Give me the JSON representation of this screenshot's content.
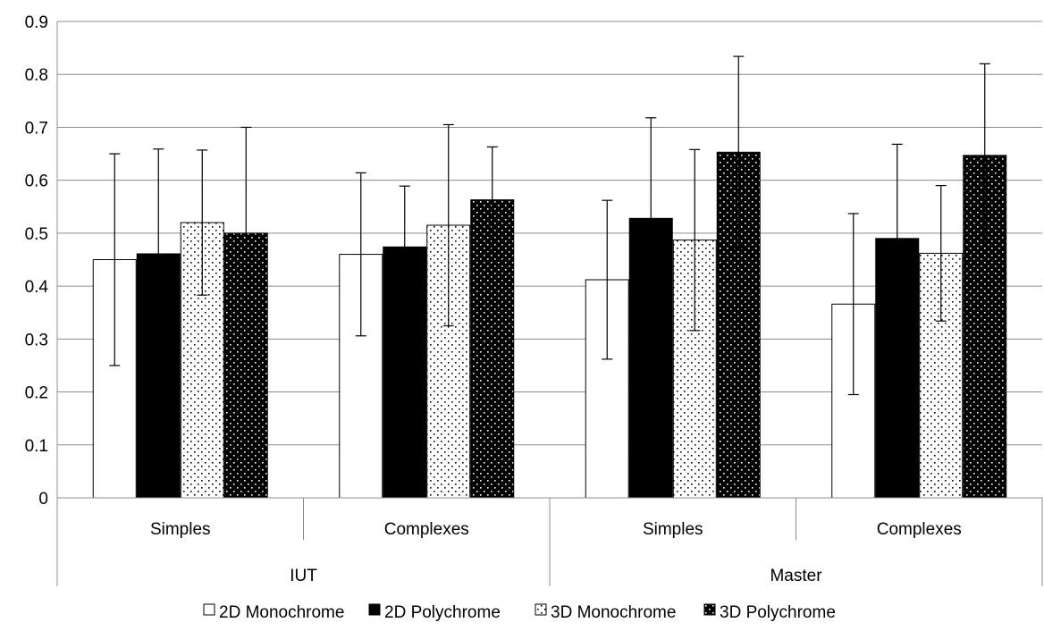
{
  "chart_data": {
    "type": "bar",
    "title": "",
    "xlabel": "",
    "ylabel": "",
    "ylim": [
      0,
      0.9
    ],
    "y_ticks": [
      "0",
      "0.1",
      "0.2",
      "0.3",
      "0.4",
      "0.5",
      "0.6",
      "0.7",
      "0.8",
      "0.9"
    ],
    "grid": true,
    "legend_position": "bottom",
    "groups": [
      {
        "label": "IUT",
        "categories": [
          "Simples",
          "Complexes"
        ]
      },
      {
        "label": "Master",
        "categories": [
          "Simples",
          "Complexes"
        ]
      }
    ],
    "series": [
      {
        "name": "2D Monochrome",
        "pattern": "white",
        "values": [
          0.45,
          0.46,
          0.412,
          0.366
        ],
        "errors": [
          0.2,
          0.154,
          0.15,
          0.171
        ]
      },
      {
        "name": "2D Polychrome",
        "pattern": "black",
        "values": [
          0.461,
          0.474,
          0.528,
          0.49
        ],
        "errors": [
          0.198,
          0.115,
          0.19,
          0.178
        ]
      },
      {
        "name": "3D Monochrome",
        "pattern": "dotted-white",
        "values": [
          0.52,
          0.515,
          0.487,
          0.462
        ],
        "errors": [
          0.137,
          0.19,
          0.171,
          0.128
        ]
      },
      {
        "name": "3D Polychrome",
        "pattern": "dotted-black",
        "values": [
          0.5,
          0.563,
          0.653,
          0.647
        ],
        "errors": [
          0.2,
          0.1,
          0.181,
          0.173
        ]
      }
    ]
  }
}
